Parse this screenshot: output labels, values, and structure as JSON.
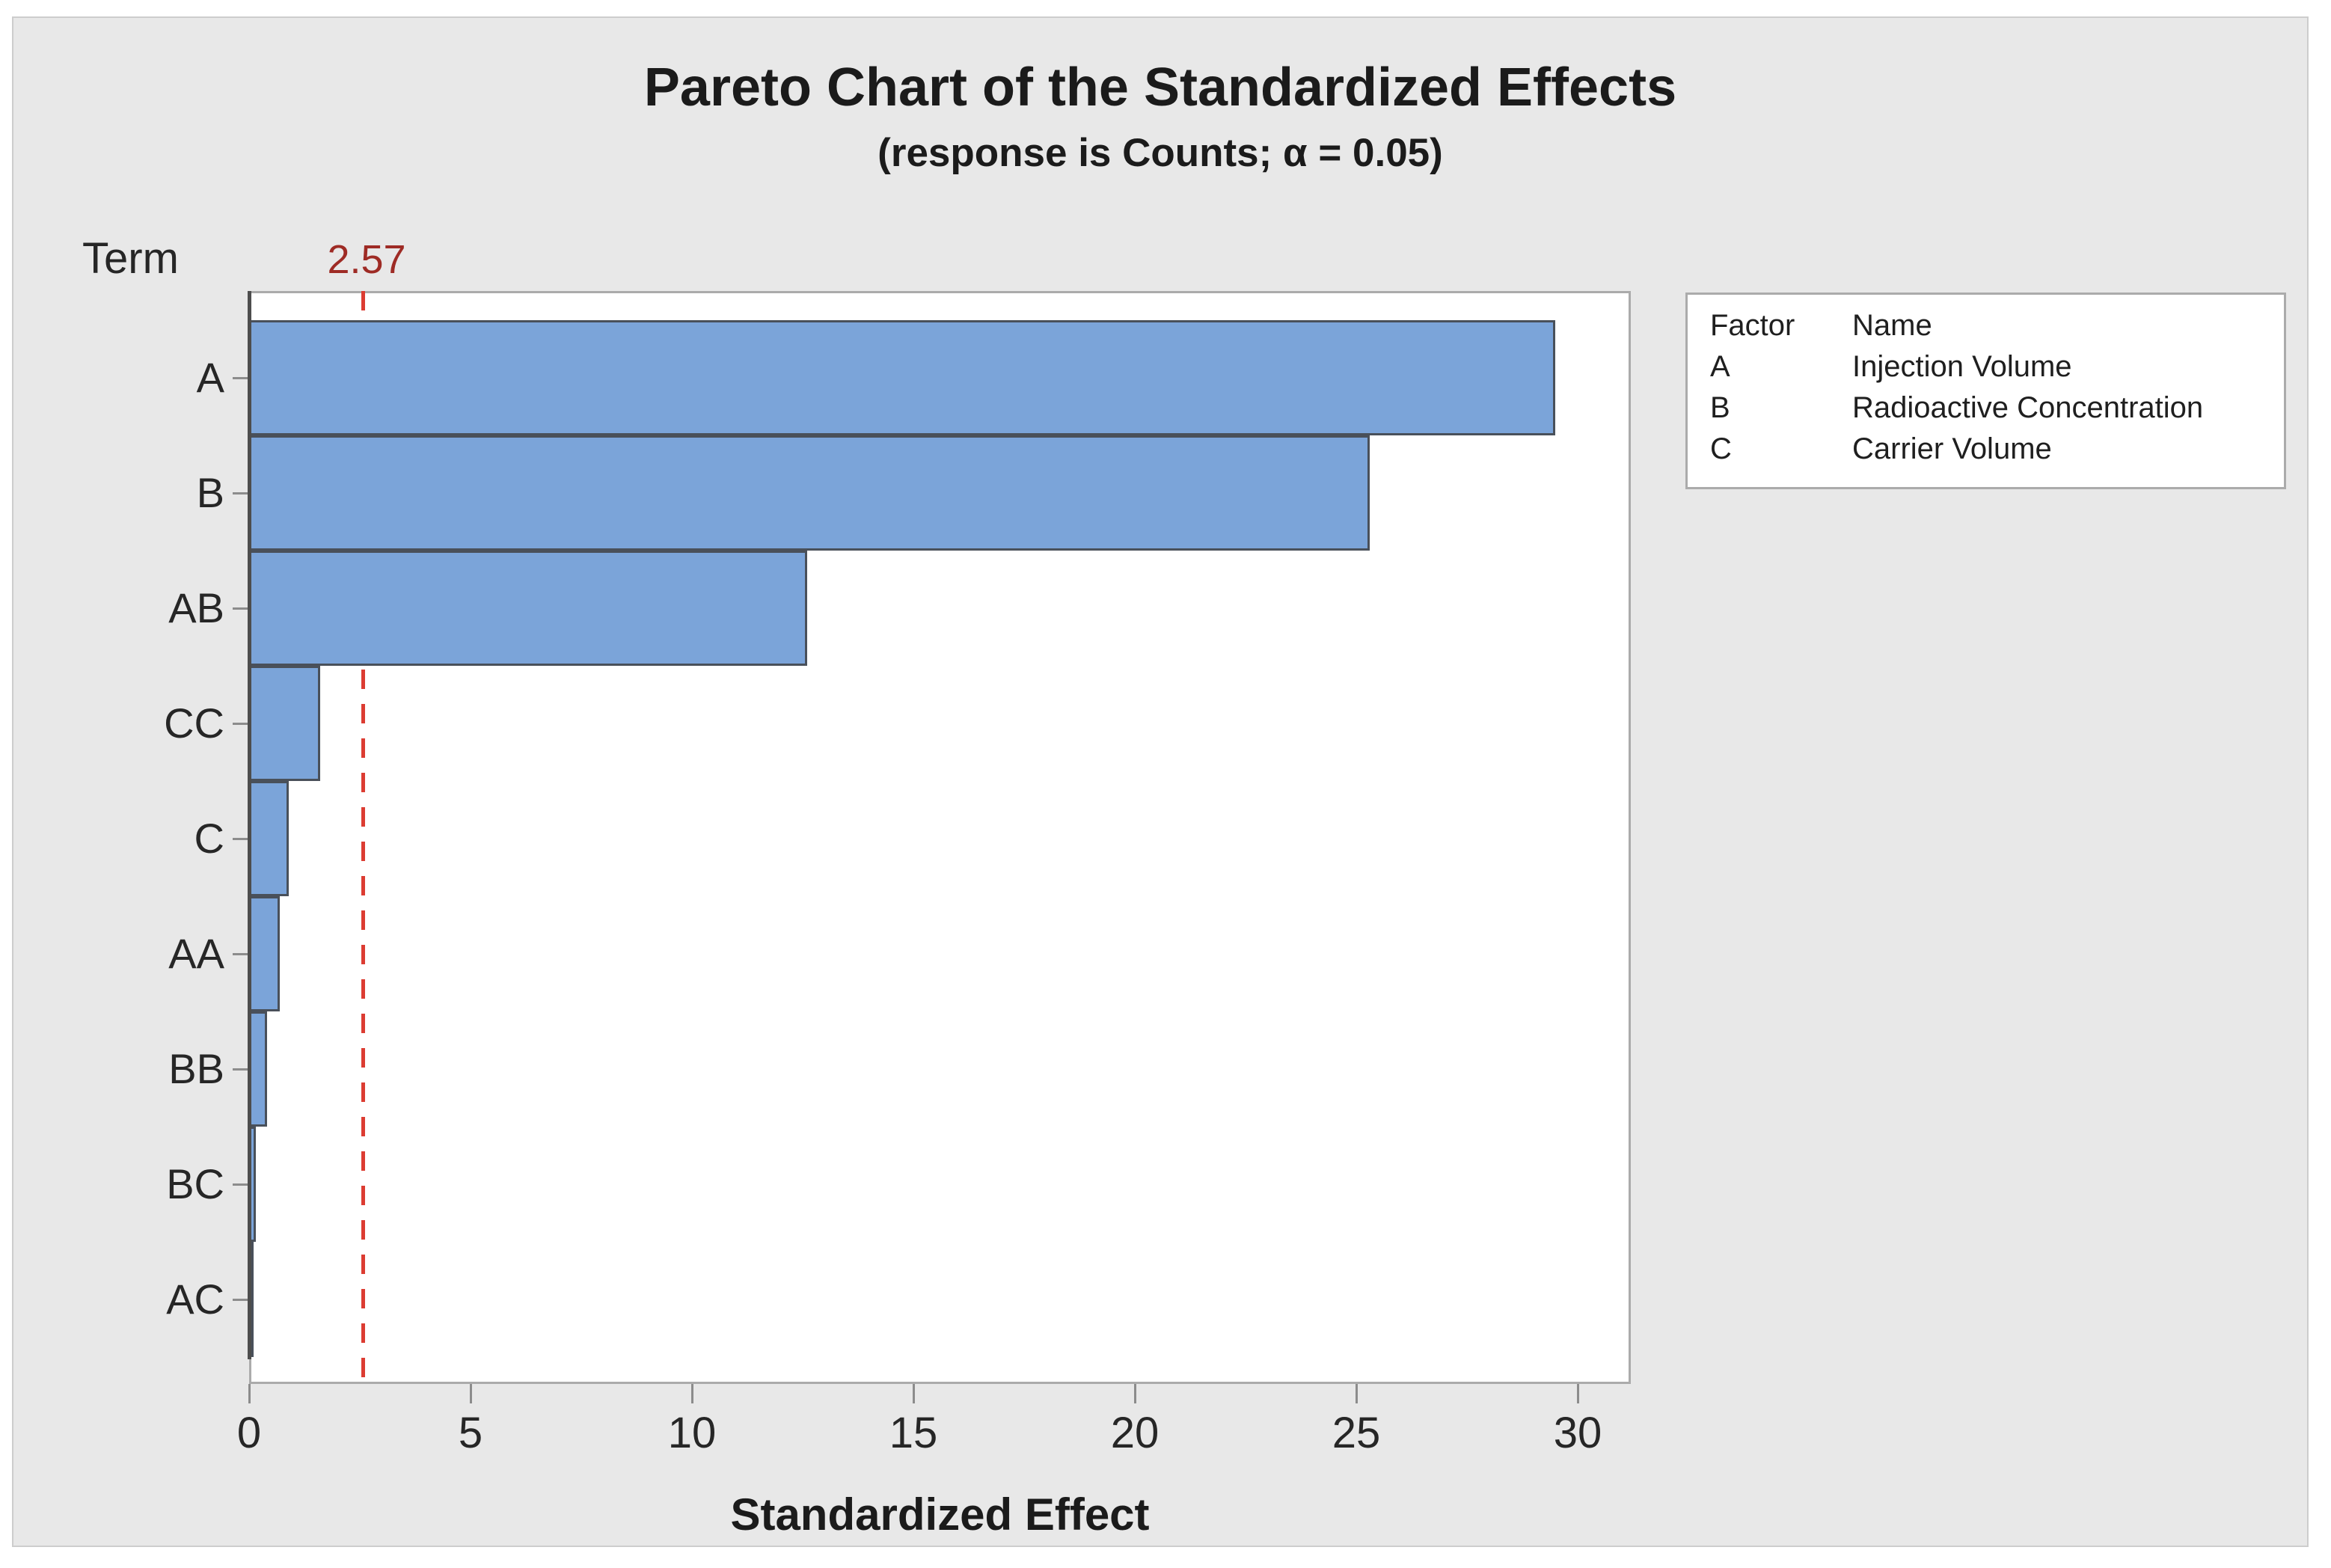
{
  "title": "Pareto Chart of the Standardized Effects",
  "subtitle": "(response is Counts; α = 0.05)",
  "term_label": "Term",
  "reference": {
    "label": "2.57",
    "value": 2.57
  },
  "xaxis": {
    "label": "Standardized Effect",
    "ticks": [
      0,
      5,
      10,
      15,
      20,
      25,
      30
    ]
  },
  "chart_data": {
    "type": "bar",
    "orientation": "horizontal",
    "title": "Pareto Chart of the Standardized Effects",
    "subtitle": "(response is Counts; α = 0.05)",
    "xlabel": "Standardized Effect",
    "ylabel": "Term",
    "categories": [
      "A",
      "B",
      "AB",
      "CC",
      "C",
      "AA",
      "BB",
      "BC",
      "AC"
    ],
    "values": [
      29.5,
      25.3,
      12.6,
      1.6,
      0.9,
      0.7,
      0.4,
      0.15,
      0.05
    ],
    "xlim": [
      0,
      31.2
    ],
    "xticks": [
      0,
      5,
      10,
      15,
      20,
      25,
      30
    ],
    "reference_line": 2.57,
    "alpha": 0.05,
    "response": "Counts",
    "grid": false,
    "legend_position": "top-right"
  },
  "legend": {
    "headers": [
      "Factor",
      "Name"
    ],
    "rows": [
      [
        "A",
        "Injection Volume"
      ],
      [
        "B",
        "Radioactive Concentration"
      ],
      [
        "C",
        "Carrier Volume"
      ]
    ]
  },
  "colors": {
    "bar_fill": "#7BA4D9",
    "bar_border": "#49505A",
    "reference_line": "#DC3C32",
    "reference_label": "#9E2B25",
    "canvas_background": "#E8E8E8",
    "plot_background": "#FFFFFF",
    "frame": "#ABABAB",
    "axis_line": "#4D4D4D",
    "tick": "#8C8C8C",
    "text": "#262626"
  }
}
